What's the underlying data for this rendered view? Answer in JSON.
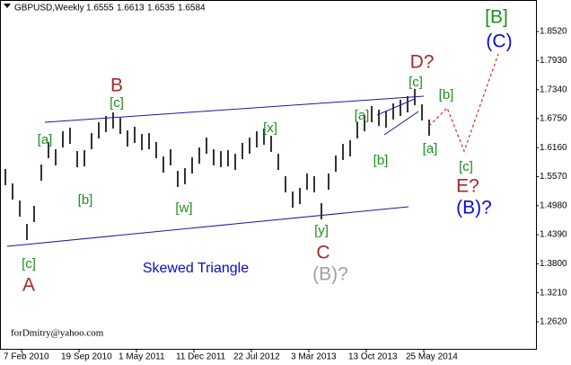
{
  "chart_data": {
    "type": "ohlc",
    "title": "GBPUSD,Weekly",
    "quote": [
      1.6555,
      1.6613,
      1.6535,
      1.6584
    ],
    "color": "#000000",
    "x_labels": [
      "7 Feb 2010",
      "19 Sep 2010",
      "1 May 2011",
      "11 Dec 2011",
      "22 Jul 2012",
      "3 Mar 2013",
      "13 Oct 2013",
      "25 May 2014"
    ],
    "high": [
      1.5725,
      1.5432,
      1.5085,
      1.461,
      1.4976,
      1.5816,
      1.6273,
      1.6127,
      1.6492,
      1.6565,
      1.609,
      1.6108,
      1.6456,
      1.6675,
      1.6803,
      1.6876,
      1.6766,
      1.651,
      1.6583,
      1.6437,
      1.6456,
      1.6273,
      1.5981,
      1.6127,
      1.5688,
      1.5743,
      1.5962,
      1.6163,
      1.6364,
      1.6127,
      1.609,
      1.6108,
      1.6035,
      1.6255,
      1.6364,
      1.6492,
      1.6547,
      1.6401,
      1.6035,
      1.5579,
      1.5268,
      1.5341,
      1.5633,
      1.5579,
      1.5031,
      1.5633,
      1.5999,
      1.6236,
      1.6309,
      1.6675,
      1.6821,
      1.7004,
      1.6931,
      1.6894,
      1.7059,
      1.7132,
      1.7205,
      1.7351,
      1.704,
      1.673
    ],
    "low": [
      1.5397,
      1.5104,
      1.4757,
      1.4282,
      1.4648,
      1.5488,
      1.5945,
      1.5799,
      1.6164,
      1.6237,
      1.5762,
      1.578,
      1.6128,
      1.6347,
      1.6475,
      1.6548,
      1.6438,
      1.6182,
      1.6255,
      1.6109,
      1.6128,
      1.5945,
      1.5653,
      1.5799,
      1.536,
      1.5415,
      1.5634,
      1.5835,
      1.6036,
      1.5799,
      1.5762,
      1.578,
      1.5707,
      1.5927,
      1.6036,
      1.6164,
      1.6219,
      1.6073,
      1.5707,
      1.5251,
      1.494,
      1.5013,
      1.5305,
      1.5251,
      1.4703,
      1.5305,
      1.5671,
      1.5908,
      1.5981,
      1.6347,
      1.6493,
      1.6676,
      1.6603,
      1.6566,
      1.6731,
      1.6804,
      1.6877,
      1.7023,
      1.6712,
      1.6402
    ],
    "ylim": [
      1.2072,
      1.9105
    ],
    "yticks": [
      {
        "value": 1.852,
        "label": "1.8520"
      },
      {
        "value": 1.793,
        "label": "1.7930"
      },
      {
        "value": 1.734,
        "label": "1.7340"
      },
      {
        "value": 1.675,
        "label": "1.6750"
      },
      {
        "value": 1.616,
        "label": "1.6160"
      },
      {
        "value": 1.557,
        "label": "1.5570"
      },
      {
        "value": 1.498,
        "label": "1.4980"
      },
      {
        "value": 1.439,
        "label": "1.4390"
      },
      {
        "value": 1.38,
        "label": "1.3800"
      },
      {
        "value": 1.321,
        "label": "1.3210"
      },
      {
        "value": 1.262,
        "label": "1.2620"
      }
    ],
    "annotations": [
      "[B]",
      "(C)",
      "D?",
      "[c]",
      "[b]",
      "[a]",
      "[b]",
      "[a]",
      "[c]",
      "E?",
      "(B)?",
      "B",
      "[c]",
      "[a]",
      "[b]",
      "[w]",
      "[x]",
      "[y]",
      "C",
      "(B)?",
      "[c]",
      "A",
      "Skewed Triangle"
    ],
    "watermark": "forDmitry@yahoo.com"
  }
}
